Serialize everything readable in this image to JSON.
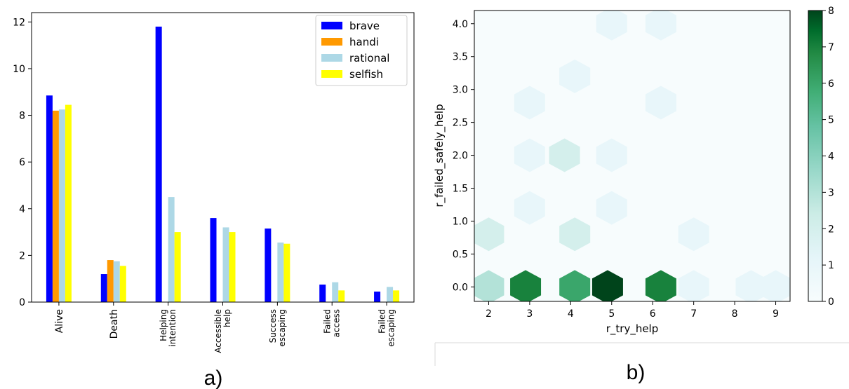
{
  "panels": {
    "a": "a)",
    "b": "b)"
  },
  "chart_data": [
    {
      "type": "bar",
      "categories": [
        "Alive",
        "Death",
        "Helping intention",
        "Accessible help",
        "Success escaping",
        "Failed access",
        "Failed escaping"
      ],
      "category_lines": [
        [
          "Alive"
        ],
        [
          "Death"
        ],
        [
          "Helping",
          "intention"
        ],
        [
          "Accessible",
          "help"
        ],
        [
          "Success",
          "escaping"
        ],
        [
          "Failed",
          "access"
        ],
        [
          "Failed",
          "escaping"
        ]
      ],
      "series": [
        {
          "name": "brave",
          "color": "#0000ff",
          "values": [
            8.85,
            1.2,
            11.8,
            3.6,
            3.15,
            0.75,
            0.45
          ]
        },
        {
          "name": "handi",
          "color": "#ff9900",
          "values": [
            8.2,
            1.8,
            0,
            0,
            0,
            0,
            0
          ]
        },
        {
          "name": "rational",
          "color": "#add8e6",
          "values": [
            8.25,
            1.75,
            4.5,
            3.2,
            2.55,
            0.85,
            0.65
          ]
        },
        {
          "name": "selfish",
          "color": "#ffff00",
          "values": [
            8.45,
            1.55,
            3.0,
            3.0,
            2.5,
            0.5,
            0.5
          ]
        }
      ],
      "ylim": [
        0,
        12.4
      ],
      "yticks": [
        0,
        2,
        4,
        6,
        8,
        10,
        12
      ],
      "legend": "top-right",
      "grid": false
    },
    {
      "type": "heatmap",
      "subtype": "hexbin",
      "xlabel": "r_try_help",
      "ylabel": "r_failed_safely_help",
      "xlim": [
        1.65,
        9.35
      ],
      "ylim": [
        -0.22,
        4.2
      ],
      "xticks": [
        2,
        3,
        4,
        5,
        6,
        7,
        8,
        9
      ],
      "yticks": [
        0.0,
        0.5,
        1.0,
        1.5,
        2.0,
        2.5,
        3.0,
        3.5,
        4.0
      ],
      "ytick_labels": [
        "0.0",
        "0.5",
        "1.0",
        "1.5",
        "2.0",
        "2.5",
        "3.0",
        "3.5",
        "4.0"
      ],
      "colorbar": {
        "min": 0,
        "max": 8,
        "ticks": [
          0,
          1,
          2,
          3,
          4,
          5,
          6,
          7,
          8
        ],
        "low_color": "#f7fcfd",
        "high_color": "#00441b"
      },
      "background_color": "#f7fcfd",
      "hexes": [
        {
          "x": 2.0,
          "y": 0.0,
          "count": 3
        },
        {
          "x": 2.9,
          "y": 0.0,
          "count": 7
        },
        {
          "x": 4.1,
          "y": 0.0,
          "count": 6
        },
        {
          "x": 4.9,
          "y": 0.0,
          "count": 8
        },
        {
          "x": 6.2,
          "y": 0.0,
          "count": 7
        },
        {
          "x": 7.0,
          "y": 0.0,
          "count": 1
        },
        {
          "x": 8.4,
          "y": 0.0,
          "count": 1
        },
        {
          "x": 9.0,
          "y": 0.0,
          "count": 1
        },
        {
          "x": 2.0,
          "y": 0.8,
          "count": 2
        },
        {
          "x": 4.1,
          "y": 0.8,
          "count": 2
        },
        {
          "x": 7.0,
          "y": 0.8,
          "count": 1
        },
        {
          "x": 3.0,
          "y": 1.2,
          "count": 1
        },
        {
          "x": 5.0,
          "y": 1.2,
          "count": 1
        },
        {
          "x": 3.0,
          "y": 2.0,
          "count": 1
        },
        {
          "x": 3.85,
          "y": 2.0,
          "count": 2
        },
        {
          "x": 5.0,
          "y": 2.0,
          "count": 1
        },
        {
          "x": 3.0,
          "y": 2.8,
          "count": 1
        },
        {
          "x": 6.2,
          "y": 2.8,
          "count": 1
        },
        {
          "x": 4.1,
          "y": 3.2,
          "count": 1
        },
        {
          "x": 5.0,
          "y": 4.0,
          "count": 1
        },
        {
          "x": 6.2,
          "y": 4.0,
          "count": 1
        }
      ]
    }
  ]
}
